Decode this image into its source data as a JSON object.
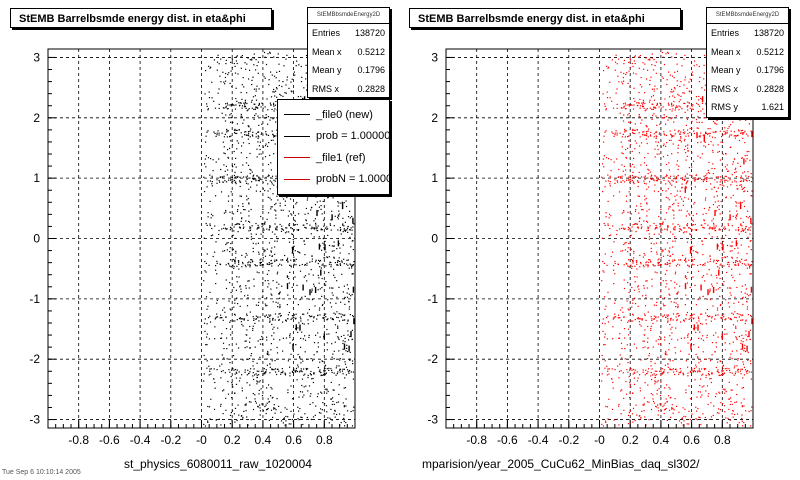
{
  "chart_data": [
    {
      "type": "scatter",
      "title": "StEMB Barrelbsmde energy dist. in eta&phi",
      "xlabel": "st_physics_6080011_raw_1020004",
      "xlim": [
        -1,
        1
      ],
      "ylim": [
        -3.14,
        3.14
      ],
      "x_ticks": [
        "-0.8",
        "-0.6",
        "-0.4",
        "-0.2",
        "-0",
        "0.2",
        "0.4",
        "0.6",
        "0.8"
      ],
      "y_ticks": [
        "3",
        "2",
        "1",
        "0",
        "-1",
        "-2",
        "-3"
      ],
      "grid": true,
      "marker_color": "#000000",
      "stats": {
        "header": "StEMBbsmdeEnergy2D",
        "rows": [
          {
            "label": "Entries",
            "value": "138720"
          },
          {
            "label": "Mean x",
            "value": "0.5212"
          },
          {
            "label": "Mean y",
            "value": "0.1796"
          },
          {
            "label": "RMS x",
            "value": "0.2828"
          }
        ]
      },
      "legend": {
        "placement": "top-right",
        "entries": [
          {
            "label": "_file0 (new)",
            "color": "#000000"
          },
          {
            "label": "prob = 1.000000",
            "color": "#000000"
          },
          {
            "label": "_file1 (ref)",
            "color": "#cc0000"
          },
          {
            "label": "probN = 1.000000",
            "color": "#cc0000"
          }
        ]
      }
    },
    {
      "type": "scatter",
      "title": "StEMB Barrelbsmde energy dist. in eta&phi",
      "xlabel": "mparision/year_2005_CuCu62_MinBias_daq_sl302/",
      "xlim": [
        -1,
        1
      ],
      "ylim": [
        -3.14,
        3.14
      ],
      "x_ticks": [
        "-0.8",
        "-0.6",
        "-0.4",
        "-0.2",
        "-0",
        "0.2",
        "0.4",
        "0.6",
        "0.8"
      ],
      "y_ticks": [
        "3",
        "2",
        "1",
        "0",
        "-1",
        "-2",
        "-3"
      ],
      "grid": true,
      "marker_color": "#ff0000",
      "stats": {
        "header": "StEMBbsmdeEnergy2D",
        "rows": [
          {
            "label": "Entries",
            "value": "138720"
          },
          {
            "label": "Mean x",
            "value": "0.5212"
          },
          {
            "label": "Mean y",
            "value": "0.1796"
          },
          {
            "label": "RMS x",
            "value": "0.2828"
          },
          {
            "label": "RMS y",
            "value": "1.621"
          }
        ]
      }
    }
  ],
  "footer_text": "Tue Sep  6 10:10:14 2005"
}
